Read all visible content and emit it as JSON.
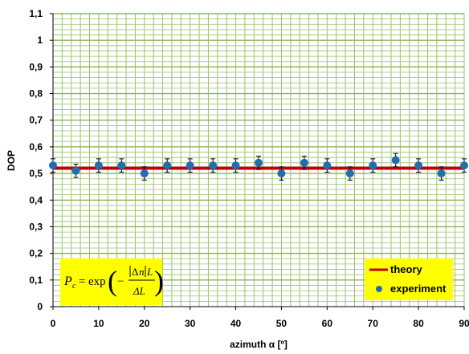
{
  "chart_data": {
    "type": "scatter",
    "xlabel": "azimuth α [º]",
    "ylabel": "DOP",
    "xlim": [
      0,
      90
    ],
    "ylim": [
      0,
      1.1
    ],
    "x_ticks": [
      "0",
      "10",
      "20",
      "30",
      "40",
      "50",
      "60",
      "70",
      "80",
      "90"
    ],
    "y_ticks": [
      "0",
      "0,1",
      "0,2",
      "0,3",
      "0,4",
      "0,5",
      "0,6",
      "0,7",
      "0,8",
      "0,9",
      "1",
      "1,1"
    ],
    "grid": true,
    "legend_position": "bottom-right",
    "series": [
      {
        "name": "theory",
        "kind": "line",
        "color": "#c00000",
        "x": [
          0,
          90
        ],
        "y": [
          0.52,
          0.52
        ]
      },
      {
        "name": "experiment",
        "kind": "scatter",
        "color": "#1f6fb0",
        "x": [
          0,
          5,
          10,
          15,
          20,
          25,
          30,
          35,
          40,
          45,
          50,
          55,
          60,
          65,
          70,
          75,
          80,
          85,
          90
        ],
        "y": [
          0.53,
          0.51,
          0.53,
          0.53,
          0.5,
          0.53,
          0.53,
          0.53,
          0.53,
          0.54,
          0.5,
          0.54,
          0.53,
          0.5,
          0.53,
          0.55,
          0.53,
          0.5,
          0.53
        ],
        "error": 0.025
      }
    ],
    "annotation": {
      "lhs": "P",
      "lhs_sub": "c",
      "equals": "=",
      "func": "exp",
      "minus": "−",
      "num_delta": "Δ",
      "num_n": "n",
      "num_L": "L",
      "den": "ΔL",
      "background": "#ffff00"
    },
    "colors": {
      "grid_major": "#8db65a",
      "grid_minor": "#9bc26a",
      "legend_bg": "#ffff00"
    }
  }
}
